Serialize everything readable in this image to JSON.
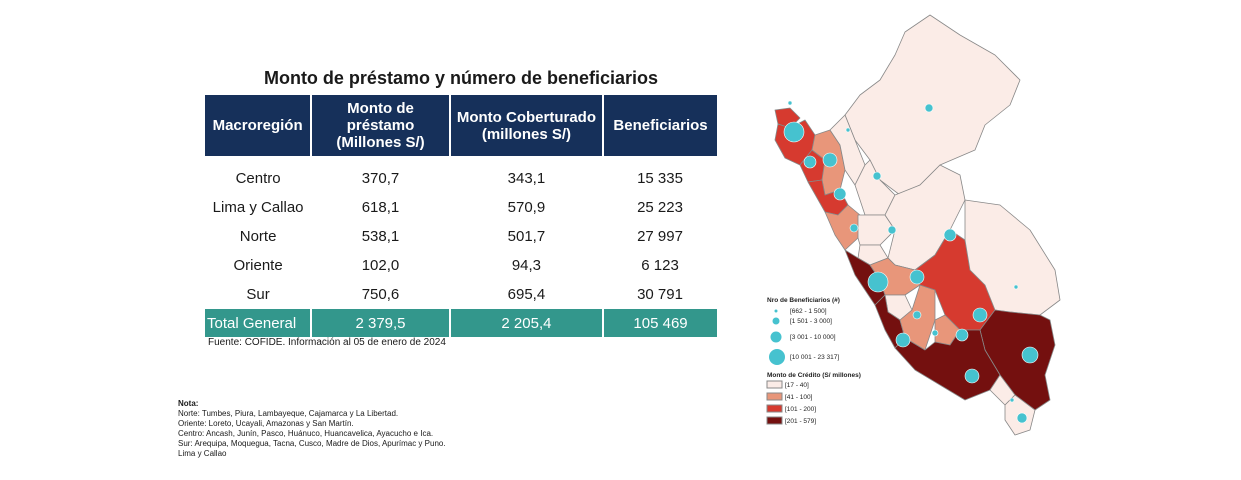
{
  "title": "Monto de préstamo y número de beneficiarios",
  "table": {
    "headers": [
      "Macroregión",
      "Monto de préstamo (Millones S/)",
      "Monto Coberturado (millones S/)",
      "Beneficiarios"
    ],
    "rows": [
      [
        "Centro",
        "370,7",
        "343,1",
        "15 335"
      ],
      [
        "Lima y Callao",
        "618,1",
        "570,9",
        "25 223"
      ],
      [
        "Norte",
        "538,1",
        "501,7",
        "27 997"
      ],
      [
        "Oriente",
        "102,0",
        "94,3",
        "6 123"
      ],
      [
        "Sur",
        "750,6",
        "695,4",
        "30 791"
      ]
    ],
    "total": [
      "Total General",
      "2 379,5",
      "2 205,4",
      "105 469"
    ]
  },
  "source": "Fuente: COFIDE. Información al 05 de enero de 2024",
  "note": {
    "title": "Nota:",
    "lines": [
      "Norte: Tumbes, Piura, Lambayeque, Cajamarca y La Libertad.",
      "Oriente: Loreto, Ucayali, Amazonas y San Martín.",
      "Centro:  Ancash, Junín, Pasco, Huánuco, Huancavelica, Ayacucho e Ica.",
      "Sur: Arequipa, Moquegua, Tacna, Cusco, Madre de Dios, Apurímac y Puno.",
      "Lima y Callao"
    ]
  },
  "map": {
    "legend_beneficiarios": {
      "title": "Nro de Beneficiarios (#)",
      "items": [
        "[662 - 1 500]",
        "[1 501 - 3 000]",
        "[3 001 - 10 000]",
        "[10 001 - 23 317]"
      ]
    },
    "legend_credito": {
      "title": "Monto de Crédito (S/ millones)",
      "items": [
        "[17 - 40]",
        "[41 - 100]",
        "[101 - 200]",
        "[201 - 579]"
      ]
    },
    "colors": {
      "bubble": "#46c2cf",
      "class_1": "#fbece7",
      "class_2": "#e8967a",
      "class_3": "#d63a2f",
      "class_4": "#74100f",
      "border": "#888888"
    }
  }
}
